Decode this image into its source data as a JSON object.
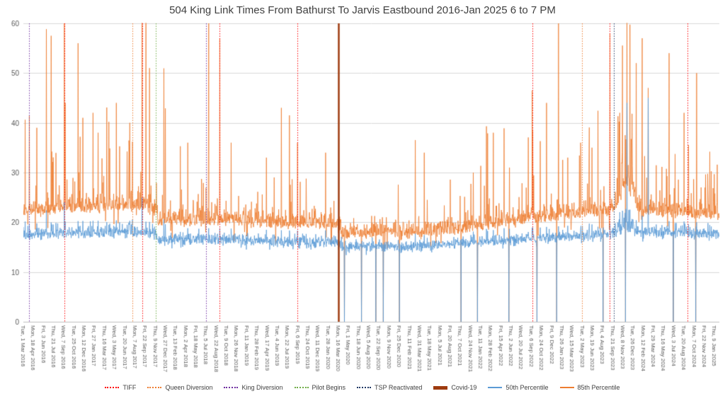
{
  "chart_data": {
    "type": "line",
    "title": "504 King Link Times From Bathurst To Jarvis Eastbound 2016-Jan 2025 6 to 7 PM",
    "xlabel": "",
    "ylabel": "",
    "ylim": [
      0,
      60
    ],
    "yticks": [
      0,
      10,
      20,
      30,
      40,
      50,
      60
    ],
    "grid": "horizontal",
    "x_start": "2016-03-01",
    "x_end": "2025-01-31",
    "x_frequency": "weekdays",
    "tick_every_points": 34,
    "axis_color": "#BFBFBF",
    "grid_color": "#D9D9D9",
    "label_color": "#595959",
    "title_color": "#3F3F3F",
    "x_tick_labels": [
      "Tue, 1 Mar 2016",
      "Mon, 18 Apr 2016",
      "Fri, 3 Jun 2016",
      "Thu, 21 Jul 2016",
      "Wed, 7 Sep 2016",
      "Tue, 25 Oct 2016",
      "Mon, 12 Dec 2016",
      "Fri, 27 Jan 2017",
      "Thu, 16 Mar 2017",
      "Wed, 3 May 2017",
      "Tue, 20 Jun 2017",
      "Mon, 7 Aug 2017",
      "Fri, 22 Sep 2017",
      "Thu, 9 Nov 2017",
      "Wed, 27 Dec 2017",
      "Tue, 13 Feb 2018",
      "Mon, 2 Apr 2018",
      "Fri, 18 May 2018",
      "Thu, 5 Jul 2018",
      "Wed, 22 Aug 2018",
      "Tue, 9 Oct 2018",
      "Mon, 26 Nov 2018",
      "Fri, 11 Jan 2019",
      "Thu, 28 Feb 2019",
      "Wed, 17 Apr 2019",
      "Tue, 4 Jun 2019",
      "Mon, 22 Jul 2019",
      "Fri, 6 Sep 2019",
      "Thu, 24 Oct 2019",
      "Wed, 11 Dec 2019",
      "Tue, 28 Jan 2020",
      "Mon, 16 Mar 2020",
      "Fri, 1 May 2020",
      "Thu, 18 Jun 2020",
      "Wed, 5 Aug 2020",
      "Tue, 22 Sep 2020",
      "Mon, 9 Nov 2020",
      "Fri, 25 Dec 2020",
      "Thu, 11 Feb 2021",
      "Wed, 31 Mar 2021",
      "Tue, 18 May 2021",
      "Mon, 5 Jul 2021",
      "Fri, 20 Aug 2021",
      "Thu, 7 Oct 2021",
      "Wed, 24 Nov 2021",
      "Tue, 11 Jan 2022",
      "Mon, 28 Feb 2022",
      "Fri, 15 Apr 2022",
      "Thu, 2 Jun 2022",
      "Wed, 20 Jul 2022",
      "Tue, 6 Sep 2022",
      "Mon, 24 Oct 2022",
      "Fri, 9 Dec 2022",
      "Thu, 26 Jan 2023",
      "Wed, 15 Mar 2023",
      "Tue, 2 May 2023",
      "Mon, 19 Jun 2023",
      "Fri, 4 Aug 2023",
      "Thu, 21 Sep 2023",
      "Wed, 8 Nov 2023",
      "Tue, 26 Dec 2023",
      "Mon, 12 Feb 2024",
      "Fri, 29 Mar 2024",
      "Thu, 16 May 2024",
      "Wed, 3 Jul 2024",
      "Tue, 20 Aug 2024",
      "Mon, 7 Oct 2024",
      "Fri, 22 Nov 2024",
      "Thu, 9 Jan 2025"
    ],
    "series": [
      {
        "name": "50th Percentile",
        "color": "#5B9BD5",
        "baseline": [
          {
            "d": "2016-03-01",
            "v": 17.4
          },
          {
            "d": "2016-10-01",
            "v": 18.0
          },
          {
            "d": "2017-06-01",
            "v": 18.2
          },
          {
            "d": "2017-11-10",
            "v": 17.8
          },
          {
            "d": "2017-11-20",
            "v": 16.6
          },
          {
            "d": "2018-09-01",
            "v": 16.6
          },
          {
            "d": "2019-09-01",
            "v": 16.1
          },
          {
            "d": "2020-03-06",
            "v": 16.2
          },
          {
            "d": "2020-04-06",
            "v": 14.9
          },
          {
            "d": "2020-09-01",
            "v": 15.4
          },
          {
            "d": "2021-02-01",
            "v": 15.0
          },
          {
            "d": "2021-10-01",
            "v": 15.7
          },
          {
            "d": "2022-06-01",
            "v": 16.5
          },
          {
            "d": "2023-01-15",
            "v": 17.0
          },
          {
            "d": "2023-09-15",
            "v": 17.6
          },
          {
            "d": "2023-11-20",
            "v": 18.6
          },
          {
            "d": "2024-01-20",
            "v": 18.1
          },
          {
            "d": "2024-08-01",
            "v": 18.0
          },
          {
            "d": "2025-01-31",
            "v": 17.5
          }
        ],
        "landmarks": [
          {
            "d": "2016-09-08",
            "v": 24
          },
          {
            "d": "2017-09-07",
            "v": 25
          },
          {
            "d": "2023-11-27",
            "v": 44
          },
          {
            "d": "2024-03-05",
            "v": 45
          }
        ]
      },
      {
        "name": "85th Percentile",
        "color": "#ED7D31",
        "baseline": [
          {
            "d": "2016-03-01",
            "v": 21.3
          },
          {
            "d": "2016-10-01",
            "v": 22.3
          },
          {
            "d": "2017-06-01",
            "v": 22.5
          },
          {
            "d": "2017-11-10",
            "v": 22.0
          },
          {
            "d": "2017-11-20",
            "v": 19.6
          },
          {
            "d": "2018-09-01",
            "v": 19.6
          },
          {
            "d": "2019-09-01",
            "v": 19.1
          },
          {
            "d": "2020-03-06",
            "v": 19.0
          },
          {
            "d": "2020-04-06",
            "v": 16.7
          },
          {
            "d": "2020-09-01",
            "v": 17.3
          },
          {
            "d": "2021-02-01",
            "v": 16.9
          },
          {
            "d": "2021-10-01",
            "v": 17.9
          },
          {
            "d": "2022-06-01",
            "v": 19.6
          },
          {
            "d": "2023-01-15",
            "v": 20.4
          },
          {
            "d": "2023-09-15",
            "v": 21.6
          },
          {
            "d": "2023-10-20",
            "v": 23.5
          },
          {
            "d": "2023-11-20",
            "v": 27.5
          },
          {
            "d": "2023-12-20",
            "v": 25.0
          },
          {
            "d": "2024-01-20",
            "v": 21.8
          },
          {
            "d": "2024-08-01",
            "v": 21.3
          },
          {
            "d": "2025-01-31",
            "v": 20.6
          }
        ],
        "landmarks": [
          {
            "d": "2016-03-29",
            "v": 41.5
          },
          {
            "d": "2016-05-03",
            "v": 39
          },
          {
            "d": "2016-07-08",
            "v": 57.5
          },
          {
            "d": "2016-09-08",
            "v": 60
          },
          {
            "d": "2016-09-13",
            "v": 44
          },
          {
            "d": "2016-11-11",
            "v": 56
          },
          {
            "d": "2016-12-05",
            "v": 41
          },
          {
            "d": "2017-01-20",
            "v": 42
          },
          {
            "d": "2017-02-14",
            "v": 38
          },
          {
            "d": "2017-05-10",
            "v": 44
          },
          {
            "d": "2017-07-12",
            "v": 40
          },
          {
            "d": "2017-09-07",
            "v": 62
          },
          {
            "d": "2017-09-26",
            "v": 61
          },
          {
            "d": "2017-10-12",
            "v": 51
          },
          {
            "d": "2018-04-10",
            "v": 36
          },
          {
            "d": "2018-07-17",
            "v": 60
          },
          {
            "d": "2018-09-06",
            "v": 57
          },
          {
            "d": "2018-10-30",
            "v": 36
          },
          {
            "d": "2019-04-12",
            "v": 33
          },
          {
            "d": "2019-06-21",
            "v": 43
          },
          {
            "d": "2019-07-30",
            "v": 41.5
          },
          {
            "d": "2019-09-05",
            "v": 36
          },
          {
            "d": "2020-01-15",
            "v": 34
          },
          {
            "d": "2021-04-21",
            "v": 34
          },
          {
            "d": "2021-12-07",
            "v": 30
          },
          {
            "d": "2022-03-10",
            "v": 38
          },
          {
            "d": "2022-05-25",
            "v": 31
          },
          {
            "d": "2022-09-08",
            "v": 46.5
          },
          {
            "d": "2022-11-15",
            "v": 44
          },
          {
            "d": "2023-01-10",
            "v": 60
          },
          {
            "d": "2023-02-22",
            "v": 33
          },
          {
            "d": "2023-06-15",
            "v": 35
          },
          {
            "d": "2023-09-07",
            "v": 58
          },
          {
            "d": "2024-01-09",
            "v": 52
          },
          {
            "d": "2024-02-06",
            "v": 57
          },
          {
            "d": "2024-03-05",
            "v": 47
          },
          {
            "d": "2024-06-11",
            "v": 54
          },
          {
            "d": "2024-08-20",
            "v": 42
          },
          {
            "d": "2024-10-17",
            "v": 50
          },
          {
            "d": "2024-12-10",
            "v": 26.5
          }
        ]
      }
    ],
    "zero_value_days": [
      "2020-04-13",
      "2020-07-01",
      "2020-09-07",
      "2020-10-12",
      "2020-12-25",
      "2021-10-11",
      "2021-12-27",
      "2022-05-23",
      "2022-09-30",
      "2023-01-02",
      "2023-08-07",
      "2023-11-20",
      "2024-07-01",
      "2024-10-14"
    ],
    "noise_model": {
      "seed": 7,
      "eras": [
        {
          "from": "2016-03-01",
          "to": "2017-11-10",
          "p": 0.11,
          "amp": 7
        },
        {
          "from": "2017-11-10",
          "to": "2020-03-13",
          "p": 0.07,
          "amp": 6
        },
        {
          "from": "2020-03-13",
          "to": "2021-10-01",
          "p": 0.02,
          "amp": 5
        },
        {
          "from": "2021-10-01",
          "to": "2023-10-13",
          "p": 0.08,
          "amp": 7
        },
        {
          "from": "2023-10-13",
          "to": "2023-12-29",
          "p": 0.3,
          "amp": 14,
          "blue_extra": 1.2
        },
        {
          "from": "2023-12-29",
          "to": "2025-02-01",
          "p": 0.09,
          "amp": 8
        }
      ]
    },
    "events": [
      {
        "name": "TIFF",
        "color": "#FF0000",
        "dates": [
          "2016-09-08",
          "2017-09-07",
          "2018-09-06",
          "2019-09-05",
          "2022-09-08",
          "2023-09-07",
          "2024-09-05"
        ]
      },
      {
        "name": "Queen Diversion",
        "color": "#ED7D31",
        "dates": [
          "2017-07-24",
          "2023-05-01"
        ]
      },
      {
        "name": "King Diversion",
        "color": "#7030A0",
        "dates": [
          "2016-03-29",
          "2018-07-03"
        ]
      },
      {
        "name": "Pilot Begins",
        "color": "#70AD47",
        "dates": [
          "2017-11-13"
        ]
      },
      {
        "name": "TSP Reactivated",
        "color": "#203864",
        "dates": [
          "2023-09-25"
        ]
      },
      {
        "name": "Covid-19",
        "color": "#9E3B0F",
        "solid": true,
        "width": 2.5,
        "dates": [
          "2020-03-16"
        ]
      }
    ],
    "legend": [
      {
        "label": "TIFF",
        "color": "#FF0000",
        "kind": "dotted"
      },
      {
        "label": "Queen Diversion",
        "color": "#ED7D31",
        "kind": "dotted"
      },
      {
        "label": "King Diversion",
        "color": "#7030A0",
        "kind": "dotted"
      },
      {
        "label": "Pilot Begins",
        "color": "#70AD47",
        "kind": "dotted"
      },
      {
        "label": "TSP Reactivated",
        "color": "#203864",
        "kind": "dotted"
      },
      {
        "label": "Covid-19",
        "color": "#9E3B0F",
        "kind": "thick"
      },
      {
        "label": "50th Percentile",
        "color": "#5B9BD5",
        "kind": "line"
      },
      {
        "label": "85th Percentile",
        "color": "#ED7D31",
        "kind": "line"
      }
    ]
  }
}
